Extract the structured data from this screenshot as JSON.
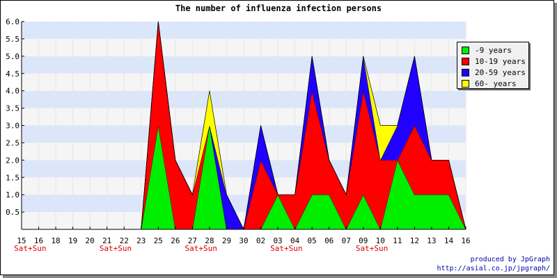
{
  "chart_data": {
    "type": "area",
    "title": "The number of influenza infection persons",
    "xlabel": "",
    "ylabel": "",
    "categories": [
      "15",
      "16",
      "18",
      "19",
      "20",
      "21",
      "22",
      "23",
      "25",
      "26",
      "27",
      "28",
      "29",
      "30",
      "02",
      "03",
      "04",
      "05",
      "06",
      "07",
      "09",
      "10",
      "11",
      "12",
      "13",
      "14",
      "16"
    ],
    "weekend_labels": [
      {
        "index": 0.5,
        "text": "Sat+Sun"
      },
      {
        "index": 5.5,
        "text": "Sat+Sun"
      },
      {
        "index": 10.5,
        "text": "Sat+Sun"
      },
      {
        "index": 15.5,
        "text": "Sat+Sun"
      },
      {
        "index": 20.5,
        "text": "Sat+Sun"
      }
    ],
    "stacked": true,
    "series": [
      {
        "name": "-9 years",
        "color": "#00ee00",
        "values": [
          0,
          0,
          0,
          0,
          0,
          0,
          0,
          0,
          3,
          0,
          0,
          3,
          0,
          0,
          0,
          1,
          0,
          1,
          1,
          0,
          1,
          0,
          2,
          1,
          1,
          1,
          0
        ]
      },
      {
        "name": "10-19 years",
        "color": "#ff0000",
        "values": [
          0,
          0,
          0,
          0,
          0,
          0,
          0,
          0,
          3,
          2,
          1,
          0,
          0,
          0,
          2,
          0,
          1,
          3,
          1,
          1,
          3,
          2,
          0,
          2,
          1,
          1,
          0
        ]
      },
      {
        "name": "20-59 years",
        "color": "#2200ff",
        "values": [
          0,
          0,
          0,
          0,
          0,
          0,
          0,
          0,
          0,
          0,
          0,
          0,
          1,
          0,
          1,
          0,
          0,
          1,
          0,
          0,
          1,
          0,
          1,
          2,
          0,
          0,
          0
        ]
      },
      {
        "name": "60- years",
        "color": "#ffff00",
        "values": [
          0,
          0,
          0,
          0,
          0,
          0,
          0,
          0,
          0,
          0,
          0,
          1,
          0,
          0,
          0,
          0,
          0,
          0,
          0,
          0,
          0,
          1,
          0,
          0,
          0,
          0,
          0
        ]
      }
    ],
    "ylim": [
      0,
      6
    ],
    "yticks": [
      "0.5",
      "1.0",
      "1.5",
      "2.0",
      "2.5",
      "3.0",
      "3.5",
      "4.0",
      "4.5",
      "5.0",
      "5.5",
      "6.0"
    ],
    "ytick_values": [
      0.5,
      1,
      1.5,
      2,
      2.5,
      3,
      3.5,
      4,
      4.5,
      5,
      5.5,
      6
    ],
    "grid": true,
    "band_colors": [
      "#f5f5f5",
      "#dce6fa"
    ],
    "legend_position": "top-right"
  },
  "credit": {
    "line1": "produced by JpGraph",
    "line2": "http://asial.co.jp/jpgraph/"
  }
}
